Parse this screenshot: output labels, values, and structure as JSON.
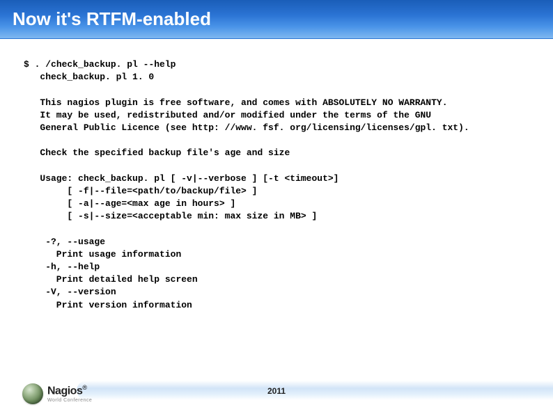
{
  "slide": {
    "title": "Now it's RTFM-enabled",
    "title_bar_gradient": [
      "#1a5db8",
      "#2b74d4",
      "#4a94e8",
      "#7fb8f0"
    ],
    "title_color": "#ffffff",
    "title_fontsize": 26
  },
  "terminal": {
    "font_family": "Courier New",
    "font_size": 13,
    "font_weight": "bold",
    "prompt": "$",
    "command": ". /check_backup. pl --help",
    "version_line": "check_backup. pl 1. 0",
    "license_lines": [
      "This nagios plugin is free software, and comes with ABSOLUTELY NO WARRANTY.",
      "It may be used, redistributed and/or modified under the terms of the GNU",
      "General Public Licence (see http: //www. fsf. org/licensing/licenses/gpl. txt)."
    ],
    "description": "Check the specified backup file's age and size",
    "usage_lines": [
      "Usage: check_backup. pl [ -v|--verbose ] [-t <timeout>]",
      "     [ -f|--file=<path/to/backup/file> ]",
      "     [ -a|--age=<max age in hours> ]",
      "     [ -s|--size=<acceptable min: max size in MB> ]"
    ],
    "options": [
      {
        "flags": " -?, --usage",
        "desc": "   Print usage information"
      },
      {
        "flags": " -h, --help",
        "desc": "   Print detailed help screen"
      },
      {
        "flags": " -V, --version",
        "desc": "   Print version information"
      }
    ]
  },
  "footer": {
    "year": "2011",
    "logo_name": "Nagios",
    "logo_reg": "®",
    "logo_sub": "World Conference",
    "gradient_colors": [
      "#c8e1f8",
      "#b4d2f2"
    ]
  }
}
